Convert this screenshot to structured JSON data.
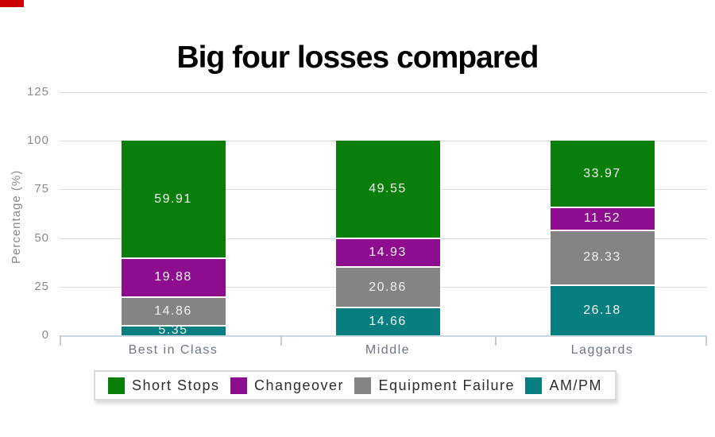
{
  "decorations": {
    "top_left_marker_color": "#cb0000"
  },
  "chart_data": {
    "type": "bar",
    "stacked": true,
    "title": "Big four losses compared",
    "xlabel": "",
    "ylabel": "Percentage (%)",
    "categories": [
      "Best in Class",
      "Middle",
      "Laggards"
    ],
    "series": [
      {
        "name": "Short Stops",
        "color": "#0a7e0a",
        "values": [
          59.91,
          49.55,
          33.97
        ]
      },
      {
        "name": "Changeover",
        "color": "#8e0d8e",
        "values": [
          19.88,
          14.93,
          11.52
        ]
      },
      {
        "name": "Equipment Failure",
        "color": "#848484",
        "values": [
          14.86,
          20.86,
          28.33
        ]
      },
      {
        "name": "AM/PM",
        "color": "#077f80",
        "values": [
          5.35,
          14.66,
          26.18
        ]
      }
    ],
    "y_ticks": [
      0,
      25,
      50,
      75,
      100,
      125
    ],
    "ylim": [
      0,
      125
    ],
    "grid": true,
    "legend_position": "bottom",
    "value_labels": "inside-white"
  }
}
